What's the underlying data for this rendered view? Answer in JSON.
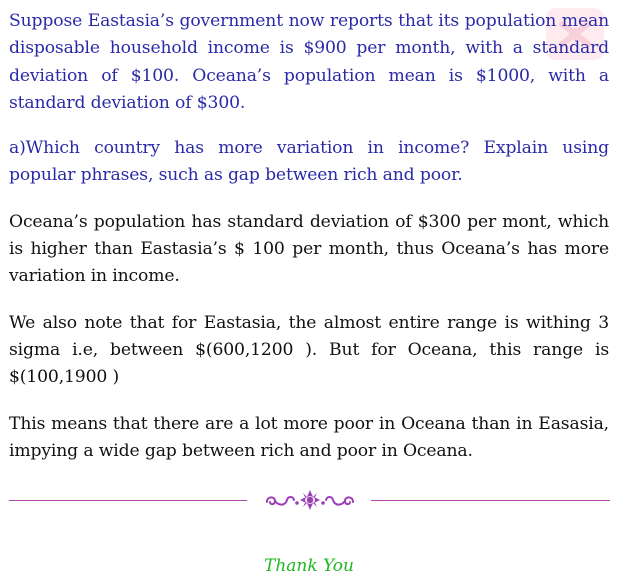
{
  "question_intro": "Suppose Eastasia’s government now reports that its population mean disposable household income is $900 per month, with a standard deviation of $100. Oceana’s population mean is $1000, with a standard deviation of $300.",
  "question_a": "a)Which country has more variation in income? Explain using popular phrases, such as gap between rich and poor.",
  "answer_1": "Oceana’s population has standard deviation of $300 per mont, which is higher than Eastasia’s $ 100 per month, thus Oceana’s has more variation in income.",
  "answer_2": "We also note that for Eastasia, the almost entire range is withing 3 sigma i.e, between $(600,1200 ). But for Oceana, this range is $(100,1900 )",
  "answer_3": "This means that there are a lot more poor in Oceana than in Easasia, impying a wide gap between rich and poor in Oceana.",
  "closing": "Thank You",
  "colors": {
    "question_text": "#2a2aa8",
    "answer_text": "#111111",
    "divider": "#b04aa8",
    "ornament": "#9b3fb5",
    "closing": "#1fb81f",
    "watermark": "#fde8ee"
  },
  "icons": {
    "divider_ornament": "floral-flourish-icon",
    "corner_watermark": "watermark-badge-icon"
  }
}
